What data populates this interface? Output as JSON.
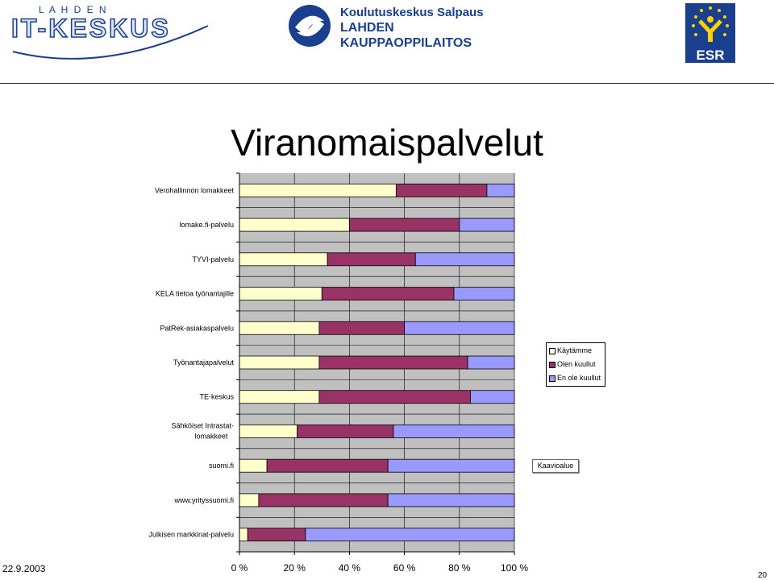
{
  "header": {
    "it_logo": {
      "top_word": "L A H D E N",
      "main_word": "IT-KESKUS"
    },
    "salpaus_logo": {
      "line1": "Koulutuskeskus Salpaus",
      "line2": "LAHDEN",
      "line3": "KAUPPAOPPILAITOS"
    },
    "esr_logo": {
      "text": "ESR"
    }
  },
  "slide": {
    "title": "Viranomaispalvelut"
  },
  "footer": {
    "date": "22.9.2003",
    "page": "20"
  },
  "colors": {
    "kaytamme": "#ffffcc",
    "olen_kuullut": "#993366",
    "en_ole_kuullut": "#9999ff",
    "plot_bg": "#c0c0c0"
  },
  "tooltip": {
    "label": "Kaavioalue"
  },
  "chart_data": {
    "type": "bar",
    "orientation": "horizontal",
    "stacked": "percent",
    "categories": [
      "Verohallinnon lomakkeet",
      "lomake.fi-palvelu",
      "TYVI-palvelu",
      "KELA tietoa työnantajille",
      "PatRek-asiakaspalvelu",
      "Työnantajapalvelut",
      "TE-keskus",
      "Sähköiset Intrastat-lomakkeet",
      "suomi.fi",
      "www.yrityssuomi.fi",
      "Julkisen markkinat-palvelu"
    ],
    "series": [
      {
        "name": "Käytämme",
        "values": [
          57,
          40,
          32,
          30,
          29,
          29,
          29,
          21,
          10,
          7,
          3
        ]
      },
      {
        "name": "Olen kuullut",
        "values": [
          33,
          40,
          32,
          48,
          31,
          54,
          55,
          35,
          44,
          47,
          21
        ]
      },
      {
        "name": "En ole kuullut",
        "values": [
          10,
          20,
          36,
          22,
          40,
          17,
          16,
          44,
          46,
          46,
          76
        ]
      }
    ],
    "x_ticks": [
      "0 %",
      "20 %",
      "40 %",
      "60 %",
      "80 %",
      "100 %"
    ],
    "xlim": [
      0,
      100
    ],
    "grid": true,
    "legend": "right"
  }
}
